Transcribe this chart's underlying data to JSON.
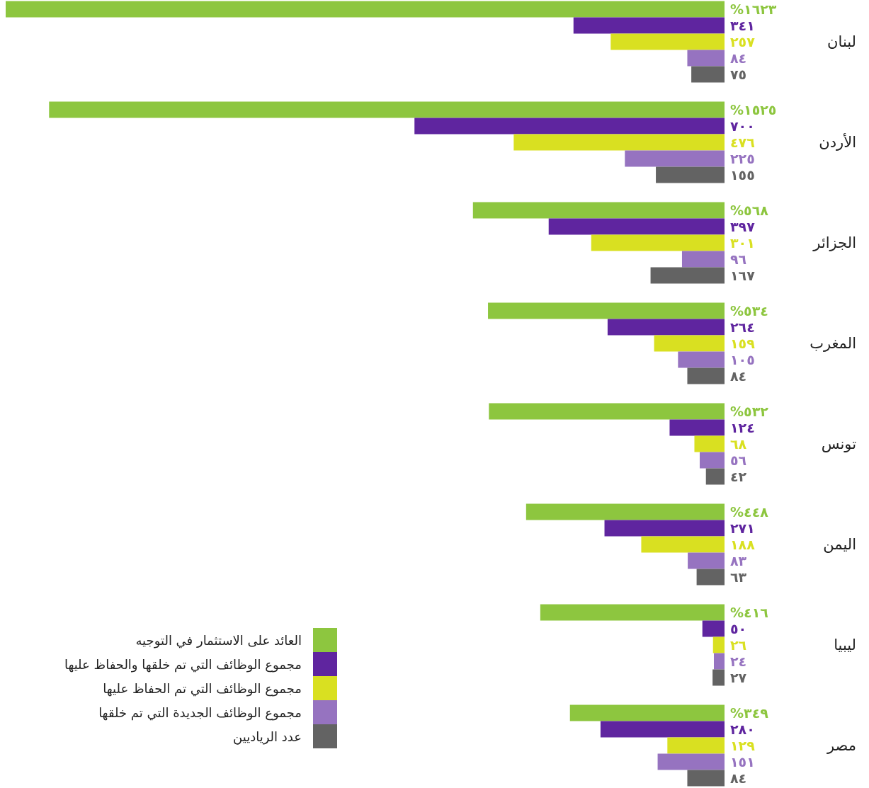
{
  "chart_data": {
    "type": "bar",
    "orientation": "horizontal",
    "legend": "bottom left",
    "categories": [
      "لبنان",
      "الأردن",
      "الجزائر",
      "المغرب",
      "تونس",
      "اليمن",
      "ليبيا",
      "مصر"
    ],
    "series": [
      {
        "name": "العائد على الاستثمار في التوجيه",
        "color": "#8dc63f",
        "values": [
          1623,
          1525,
          568,
          534,
          532,
          448,
          416,
          349
        ],
        "value_labels": [
          "١٦٢٣%",
          "١٥٢٥%",
          "٥٦٨%",
          "٥٣٤%",
          "٥٣٢%",
          "٤٤٨%",
          "٤١٦%",
          "٣٤٩%"
        ]
      },
      {
        "name": "مجموع الوظائف التي تم خلقها والحفاظ عليها",
        "color": "#5f259f",
        "values": [
          341,
          700,
          397,
          264,
          124,
          271,
          50,
          280
        ],
        "value_labels": [
          "٣٤١",
          "٧٠٠",
          "٣٩٧",
          "٢٦٤",
          "١٢٤",
          "٢٧١",
          "٥٠",
          "٢٨٠"
        ]
      },
      {
        "name": "مجموع الوظائف التي تم الحفاظ عليها",
        "color": "#d9e021",
        "values": [
          257,
          476,
          301,
          159,
          68,
          188,
          26,
          129
        ],
        "value_labels": [
          "٢٥٧",
          "٤٧٦",
          "٣٠١",
          "١٥٩",
          "٦٨",
          "١٨٨",
          "٢٦",
          "١٢٩"
        ]
      },
      {
        "name": "مجموع الوظائف الجديدة التي تم خلقها",
        "color": "#9673c0",
        "values": [
          84,
          225,
          96,
          105,
          56,
          83,
          24,
          151
        ],
        "value_labels": [
          "٨٤",
          "٢٢٥",
          "٩٦",
          "١٠٥",
          "٥٦",
          "٨٣",
          "٢٤",
          "١٥١"
        ]
      },
      {
        "name": "عدد الرياديين",
        "color": "#636363",
        "values": [
          75,
          155,
          167,
          84,
          42,
          63,
          27,
          84
        ],
        "value_labels": [
          "٧٥",
          "١٥٥",
          "١٦٧",
          "٨٤",
          "٤٢",
          "٦٣",
          "٢٧",
          "٨٤"
        ]
      }
    ]
  }
}
